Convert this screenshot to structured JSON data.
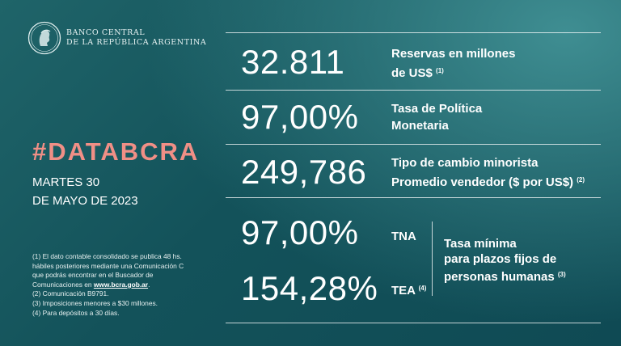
{
  "brand": {
    "line1": "BANCO CENTRAL",
    "line2": "DE LA REPÚBLICA ARGENTINA"
  },
  "hashtag": "#DATABCRA",
  "date": {
    "line1": "MARTES 30",
    "line2": "DE MAYO DE 2023"
  },
  "indicators": {
    "reservas": {
      "value": "32.811",
      "label1": "Reservas en millones",
      "label2": "de US$",
      "note": "(1)"
    },
    "tasa_politica": {
      "value": "97,00%",
      "label1": "Tasa de Política",
      "label2": "Monetaria"
    },
    "tipo_cambio": {
      "value": "249,786",
      "label1": "Tipo de cambio minorista",
      "label2": "Promedio vendedor ($ por US$)",
      "note": "(2)"
    },
    "tna": {
      "value": "97,00%",
      "label": "TNA"
    },
    "tea": {
      "value": "154,28%",
      "label": "TEA",
      "note": "(4)"
    },
    "plazos_fijos": {
      "line1": "Tasa mínima",
      "line2": "para plazos fijos de",
      "line3": "personas humanas",
      "note": "(3)"
    }
  },
  "footnotes": {
    "n1_line1": "(1) El dato contable consolidado se publica 48 hs.",
    "n1_line2": "hábiles posteriores mediante una Comunicación C",
    "n1_line3": "que podrás encontrar en el Buscador de",
    "n1_line4_prefix": "Comunicaciones en",
    "n1_link": "www.bcra.gob.ar",
    "n1_line4_suffix": ".",
    "n2": "(2) Comunicación B9791.",
    "n3": "(3) Imposiciones menores a $30 millones.",
    "n4": "(4) Para depósitos a 30 días."
  },
  "icons": {
    "logo": "bcra-seal-icon"
  }
}
